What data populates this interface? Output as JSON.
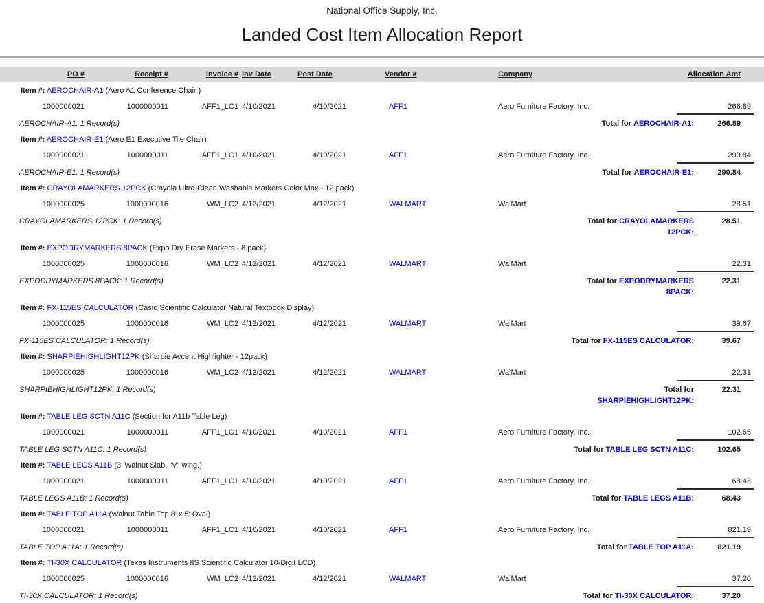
{
  "colors": {
    "link_blue": "#0000ff",
    "header_band_bg": "#d9d9d9",
    "rule_gray": "#a8a8a8",
    "text": "#1a1a1a"
  },
  "report": {
    "company": "National Office Supply, Inc.",
    "title": "Landed Cost Item Allocation Report"
  },
  "labels": {
    "item_prefix": "Item #:",
    "total_prefix": "Total for"
  },
  "table": {
    "columns": [
      "PO #",
      "Receipt #",
      "Invoice #",
      "Inv Date",
      "Post Date",
      "Vendor #",
      "Company",
      "Allocation Amt"
    ]
  },
  "groups": [
    {
      "item_code": "AEROCHAIR-A1",
      "item_desc": "(Aero A1 Conference Chair )",
      "rows": [
        {
          "po": "1000000021",
          "receipt": "1000000011",
          "invoice": "AFF1_LC1",
          "inv_date": "4/10/2021",
          "post_date": "4/10/2021",
          "vendor": "AFF1",
          "company": "Aero Furniture Factory, Inc.",
          "amount": "266.89"
        }
      ],
      "records": "AEROCHAIR-A1: 1 Record(s)",
      "total_item_line1": "AEROCHAIR-A1:",
      "total_item_line2": "",
      "total_amount": "266.89"
    },
    {
      "item_code": "AEROCHAIR-E1",
      "item_desc": "(Aero E1 Executive Tile Chair)",
      "rows": [
        {
          "po": "1000000021",
          "receipt": "1000000011",
          "invoice": "AFF1_LC1",
          "inv_date": "4/10/2021",
          "post_date": "4/10/2021",
          "vendor": "AFF1",
          "company": "Aero Furniture Factory, Inc.",
          "amount": "290.84"
        }
      ],
      "records": "AEROCHAIR-E1: 1 Record(s)",
      "total_item_line1": "AEROCHAIR-E1:",
      "total_item_line2": "",
      "total_amount": "290.84"
    },
    {
      "item_code": "CRAYOLAMARKERS 12PCK",
      "item_desc": "(Crayola Ultra-Clean Washable Markers Color Max - 12 pack)",
      "rows": [
        {
          "po": "1000000025",
          "receipt": "1000000016",
          "invoice": "WM_LC2",
          "inv_date": "4/12/2021",
          "post_date": "4/12/2021",
          "vendor": "WALMART",
          "company": "WalMart",
          "amount": "28.51"
        }
      ],
      "records": "CRAYOLAMARKERS 12PCK: 1 Record(s)",
      "total_item_line1": "CRAYOLAMARKERS",
      "total_item_line2": "12PCK:",
      "total_amount": "28.51"
    },
    {
      "item_code": "EXPODRYMARKERS 8PACK",
      "item_desc": "(Expo Dry Erase Markers - 8 pack)",
      "rows": [
        {
          "po": "1000000025",
          "receipt": "1000000016",
          "invoice": "WM_LC2",
          "inv_date": "4/12/2021",
          "post_date": "4/12/2021",
          "vendor": "WALMART",
          "company": "WalMart",
          "amount": "22.31"
        }
      ],
      "records": "EXPODRYMARKERS 8PACK: 1 Record(s)",
      "total_item_line1": "EXPODRYMARKERS",
      "total_item_line2": "8PACK:",
      "total_amount": "22.31"
    },
    {
      "item_code": "FX-115ES CALCULATOR",
      "item_desc": "(Casio Scientific Calculator Natural Textbook Display)",
      "rows": [
        {
          "po": "1000000025",
          "receipt": "1000000016",
          "invoice": "WM_LC2",
          "inv_date": "4/12/2021",
          "post_date": "4/12/2021",
          "vendor": "WALMART",
          "company": "WalMart",
          "amount": "39.67"
        }
      ],
      "records": "FX-115ES CALCULATOR: 1 Record(s)",
      "total_item_line1": "FX-115ES CALCULATOR:",
      "total_item_line2": "",
      "total_amount": "39.67"
    },
    {
      "item_code": "SHARPIEHIGHLIGHT12PK",
      "item_desc": "(Sharpie Accent Highlighter - 12pack)",
      "rows": [
        {
          "po": "1000000025",
          "receipt": "1000000016",
          "invoice": "WM_LC2",
          "inv_date": "4/12/2021",
          "post_date": "4/12/2021",
          "vendor": "WALMART",
          "company": "WalMart",
          "amount": "22.31"
        }
      ],
      "records": "SHARPIEHIGHLIGHT12PK: 1 Record(s)",
      "total_item_line1": "",
      "total_item_line2": "SHARPIEHIGHLIGHT12PK:",
      "total_amount": "22.31"
    },
    {
      "item_code": "TABLE LEG SCTN A11C",
      "item_desc": "(Section for A11b Table Leg)",
      "rows": [
        {
          "po": "1000000021",
          "receipt": "1000000011",
          "invoice": "AFF1_LC1",
          "inv_date": "4/10/2021",
          "post_date": "4/10/2021",
          "vendor": "AFF1",
          "company": "Aero Furniture Factory, Inc.",
          "amount": "102.65"
        }
      ],
      "records": "TABLE LEG SCTN A11C: 1 Record(s)",
      "total_item_line1": "TABLE LEG SCTN A11C:",
      "total_item_line2": "",
      "total_amount": "102.65"
    },
    {
      "item_code": "TABLE LEGS A11B",
      "item_desc": "(3' Walnut Slab, \"V\" wing.)",
      "rows": [
        {
          "po": "1000000021",
          "receipt": "1000000011",
          "invoice": "AFF1_LC1",
          "inv_date": "4/10/2021",
          "post_date": "4/10/2021",
          "vendor": "AFF1",
          "company": "Aero Furniture Factory, Inc.",
          "amount": "68.43"
        }
      ],
      "records": "TABLE LEGS A11B: 1 Record(s)",
      "total_item_line1": "TABLE LEGS A11B:",
      "total_item_line2": "",
      "total_amount": "68.43"
    },
    {
      "item_code": "TABLE TOP A11A",
      "item_desc": "(Walnut Table Top 8' x 5' Oval)",
      "rows": [
        {
          "po": "1000000021",
          "receipt": "1000000011",
          "invoice": "AFF1_LC1",
          "inv_date": "4/10/2021",
          "post_date": "4/10/2021",
          "vendor": "AFF1",
          "company": "Aero Furniture Factory, Inc.",
          "amount": "821.19"
        }
      ],
      "records": "TABLE TOP A11A: 1 Record(s)",
      "total_item_line1": "TABLE TOP A11A:",
      "total_item_line2": "",
      "total_amount": "821.19"
    },
    {
      "item_code": "TI-30X CALCULATOR",
      "item_desc": "(Texas Instruments IIS Scientific Calculator 10-Digit LCD)",
      "rows": [
        {
          "po": "1000000025",
          "receipt": "1000000016",
          "invoice": "WM_LC2",
          "inv_date": "4/12/2021",
          "post_date": "4/12/2021",
          "vendor": "WALMART",
          "company": "WalMart",
          "amount": "37.20"
        }
      ],
      "records": "TI-30X CALCULATOR: 1 Record(s)",
      "total_item_line1": "TI-30X CALCULATOR:",
      "total_item_line2": "",
      "total_amount": "37.20"
    }
  ]
}
